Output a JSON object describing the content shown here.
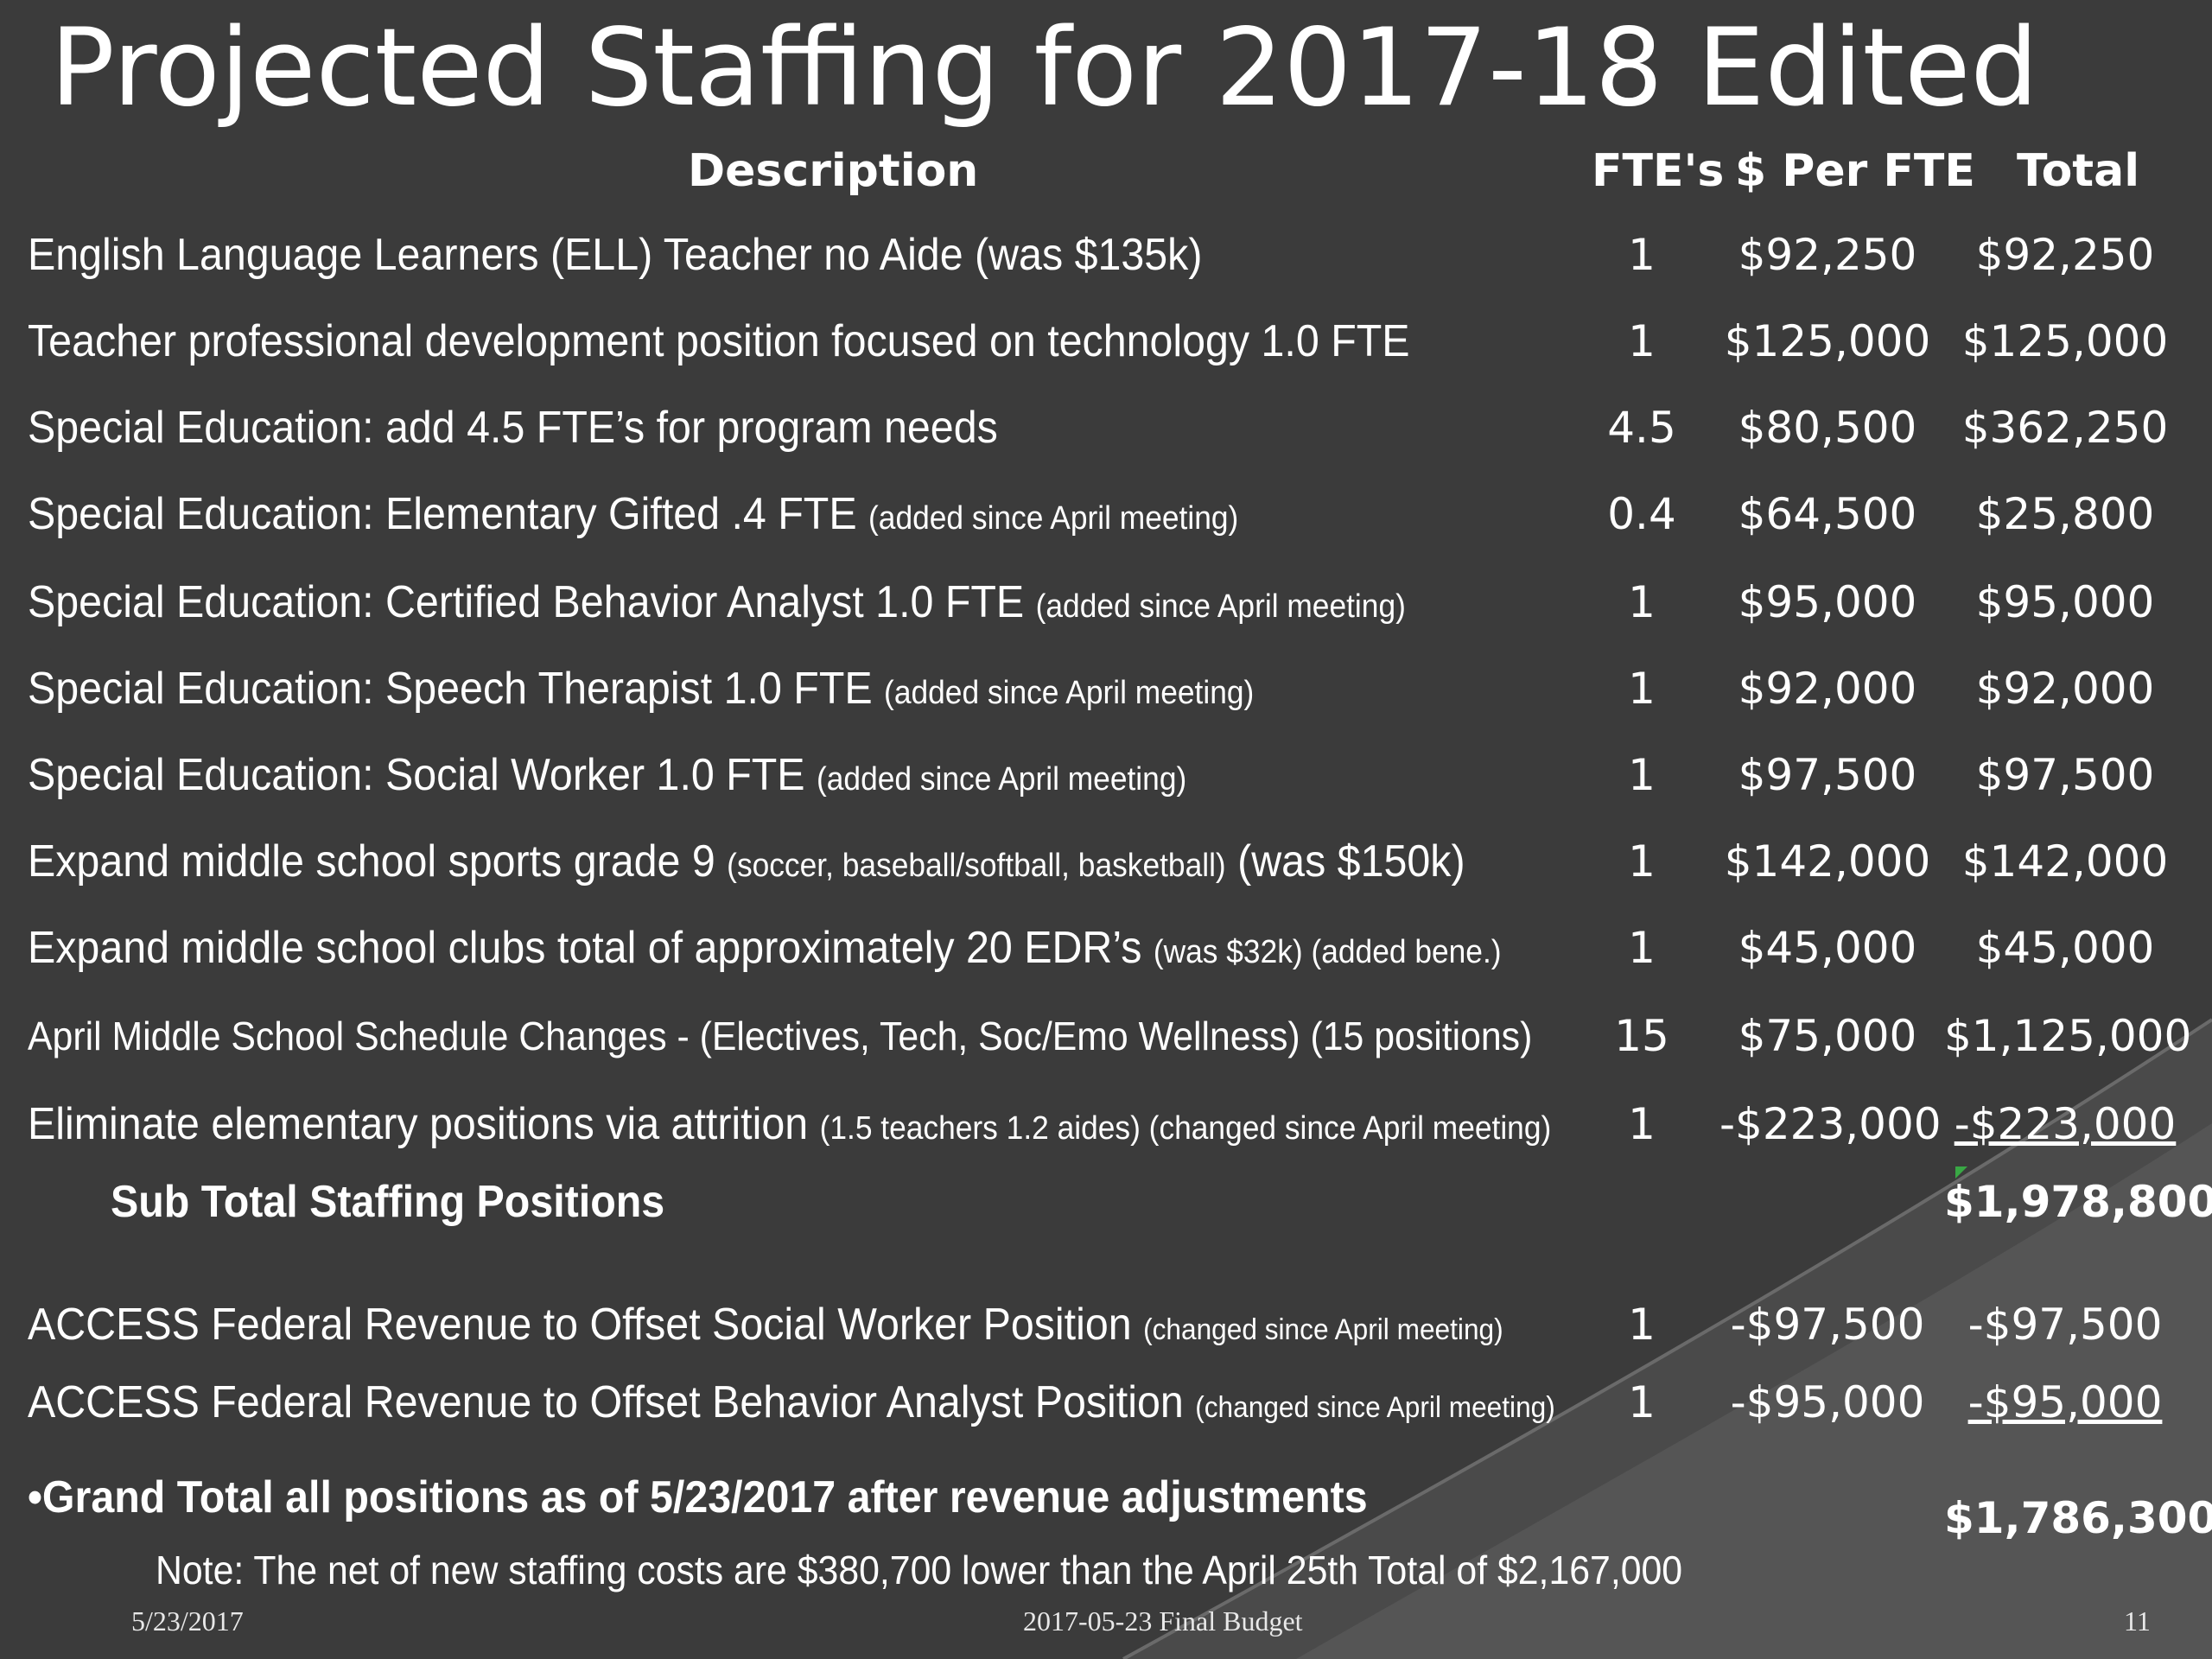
{
  "title": "Projected Staffing for 2017-18 Edited",
  "headers": {
    "description": "Description",
    "ftes": "FTE's",
    "per_fte": "$ Per FTE",
    "total": "Total"
  },
  "rows": [
    {
      "desc": "English Language Learners (ELL) Teacher no Aide (was $135k)",
      "note": "",
      "fte": "1",
      "per": "$92,250",
      "total": "$92,250"
    },
    {
      "desc": "Teacher professional development position focused on technology 1.0 FTE",
      "note": "",
      "fte": "1",
      "per": "$125,000",
      "total": "$125,000"
    },
    {
      "desc": "Special Education: add 4.5 FTE’s for program needs",
      "note": "",
      "fte": "4.5",
      "per": "$80,500",
      "total": "$362,250"
    },
    {
      "desc": "Special Education: Elementary Gifted .4 FTE",
      "note": "(added since April meeting)",
      "fte": "0.4",
      "per": "$64,500",
      "total": "$25,800"
    },
    {
      "desc": "Special Education: Certified Behavior Analyst 1.0 FTE",
      "note": "(added since April meeting)",
      "fte": "1",
      "per": "$95,000",
      "total": "$95,000"
    },
    {
      "desc": "Special Education: Speech Therapist 1.0 FTE",
      "note": "(added since April meeting)",
      "fte": "1",
      "per": "$92,000",
      "total": "$92,000"
    },
    {
      "desc": "Special Education: Social Worker 1.0 FTE",
      "note": "(added since April meeting)",
      "fte": "1",
      "per": "$97,500",
      "total": "$97,500"
    },
    {
      "desc": "Expand middle school sports grade 9",
      "note": "(soccer, baseball/softball, basketball)",
      "tail": "(was $150k)",
      "fte": "1",
      "per": "$142,000",
      "total": "$142,000"
    },
    {
      "desc": "Expand middle school clubs total of approximately 20 EDR’s",
      "note": "(was $32k) (added bene.)",
      "fte": "1",
      "per": "$45,000",
      "total": "$45,000"
    },
    {
      "desc": "April Middle School Schedule Changes - (Electives, Tech, Soc/Emo Wellness) (15 positions)",
      "note": "",
      "fte": "15",
      "per": "$75,000",
      "total": "$1,125,000"
    },
    {
      "desc": "Eliminate elementary positions via attrition",
      "note": "(1.5 teachers 1.2 aides) (changed since April meeting)",
      "fte": "1",
      "per": "-$223,000",
      "total": "-$223,000"
    }
  ],
  "subtotal": {
    "label": "Sub Total Staffing Positions",
    "total": "$1,978,800"
  },
  "revenue_rows": [
    {
      "desc": "ACCESS Federal Revenue to Offset Social Worker Position",
      "note": "(changed since April meeting)",
      "fte": "1",
      "per": "-$97,500",
      "total": "-$97,500"
    },
    {
      "desc": "ACCESS Federal Revenue to Offset Behavior Analyst Position",
      "note": "(changed since April meeting)",
      "fte": "1",
      "per": "-$95,000",
      "total": "-$95,000"
    }
  ],
  "grand_total": {
    "label": "•Grand Total all positions as of 5/23/2017 after revenue adjustments",
    "total": "$1,786,300"
  },
  "note": "Note:  The net of new staffing costs are $380,700 lower than the April 25th Total  of $2,167,000",
  "footer": {
    "date": "5/23/2017",
    "center": "2017-05-23 Final Budget",
    "page": "11"
  }
}
